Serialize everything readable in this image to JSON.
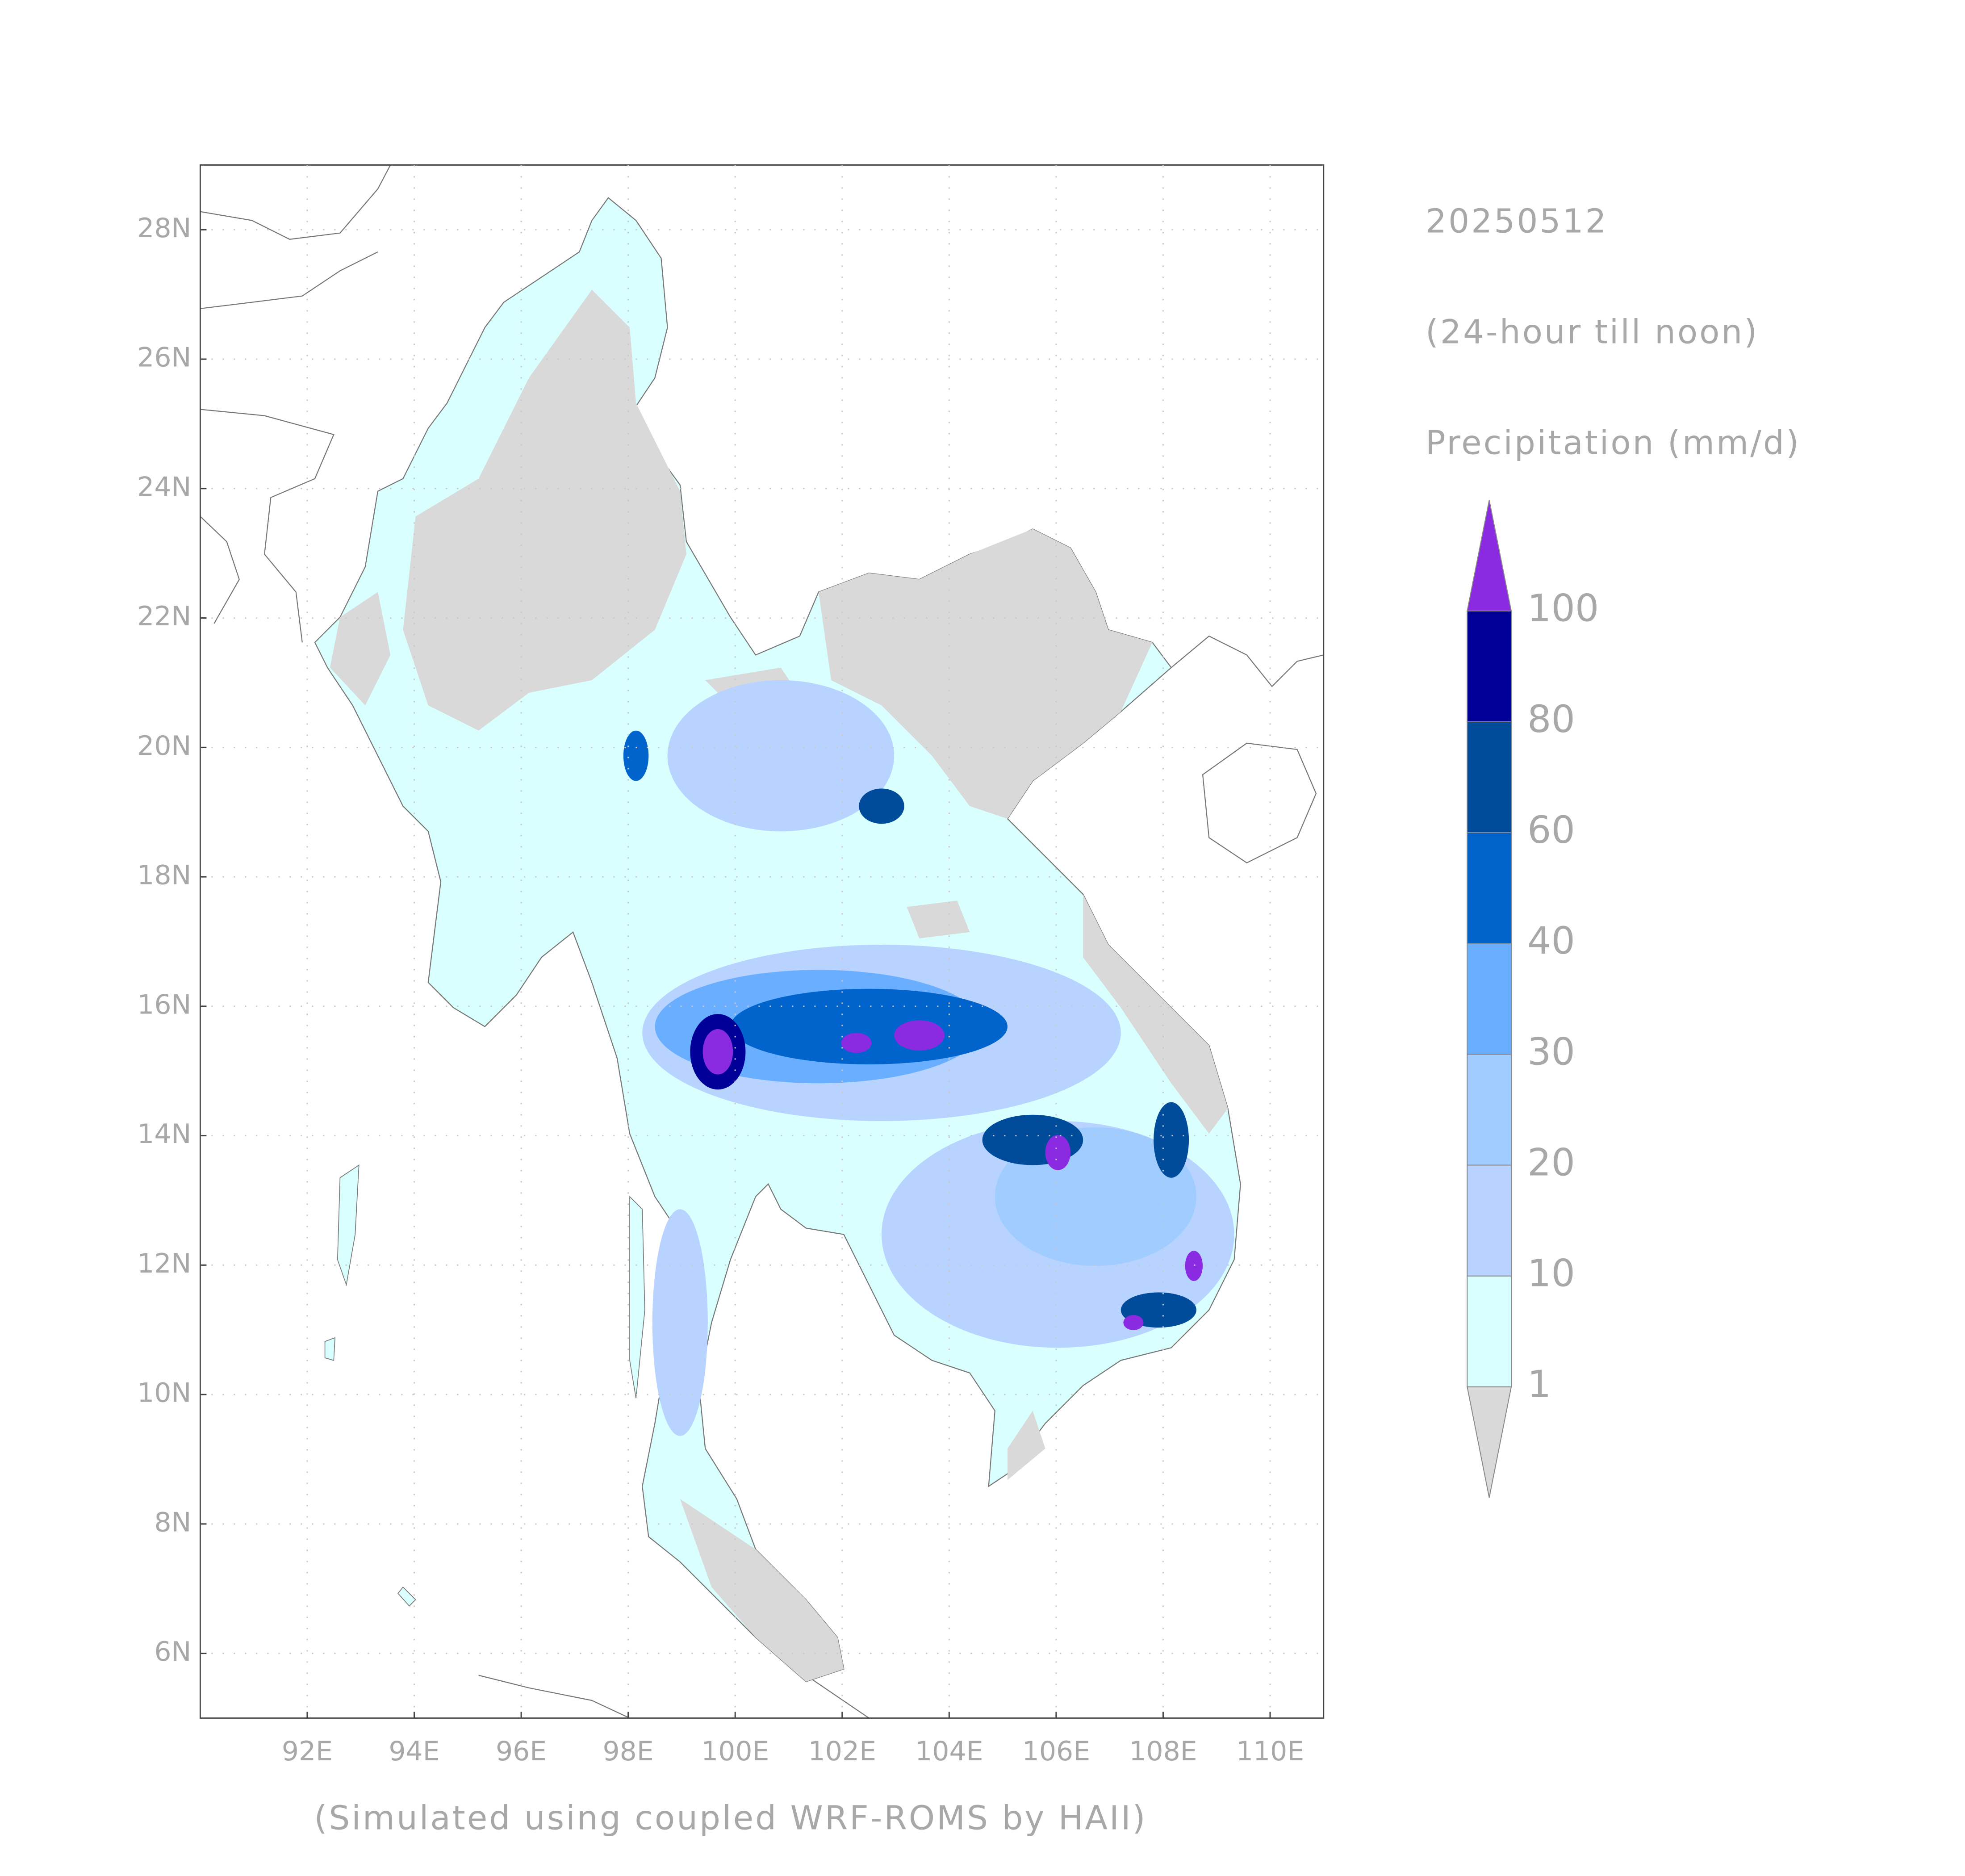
{
  "map": {
    "date": "20250512",
    "period": "(24-hour till noon)",
    "variable": "Precipitation (mm/d)",
    "credit": "(Simulated using coupled WRF-ROMS by HAII)",
    "xlim": [
      90,
      111
    ],
    "ylim": [
      5,
      29
    ],
    "xticks": [
      {
        "value": 92,
        "label": "92E"
      },
      {
        "value": 94,
        "label": "94E"
      },
      {
        "value": 96,
        "label": "96E"
      },
      {
        "value": 98,
        "label": "98E"
      },
      {
        "value": 100,
        "label": "100E"
      },
      {
        "value": 102,
        "label": "102E"
      },
      {
        "value": 104,
        "label": "104E"
      },
      {
        "value": 106,
        "label": "106E"
      },
      {
        "value": 108,
        "label": "108E"
      },
      {
        "value": 110,
        "label": "110E"
      }
    ],
    "yticks": [
      {
        "value": 6,
        "label": "6N"
      },
      {
        "value": 8,
        "label": "8N"
      },
      {
        "value": 10,
        "label": "10N"
      },
      {
        "value": 12,
        "label": "12N"
      },
      {
        "value": 14,
        "label": "14N"
      },
      {
        "value": 16,
        "label": "16N"
      },
      {
        "value": 18,
        "label": "18N"
      },
      {
        "value": 20,
        "label": "20N"
      },
      {
        "value": 22,
        "label": "22N"
      },
      {
        "value": 24,
        "label": "24N"
      },
      {
        "value": 26,
        "label": "26N"
      },
      {
        "value": 28,
        "label": "28N"
      }
    ],
    "grid": true,
    "legend": {
      "levels": [
        1,
        10,
        20,
        30,
        40,
        60,
        80,
        100
      ],
      "colors": [
        "#d9d9d9",
        "#d9ffff",
        "#b8d3ff",
        "#a0ccff",
        "#6aafff",
        "#0064cc",
        "#004c9a",
        "#000099",
        "#8a2be2"
      ]
    }
  }
}
